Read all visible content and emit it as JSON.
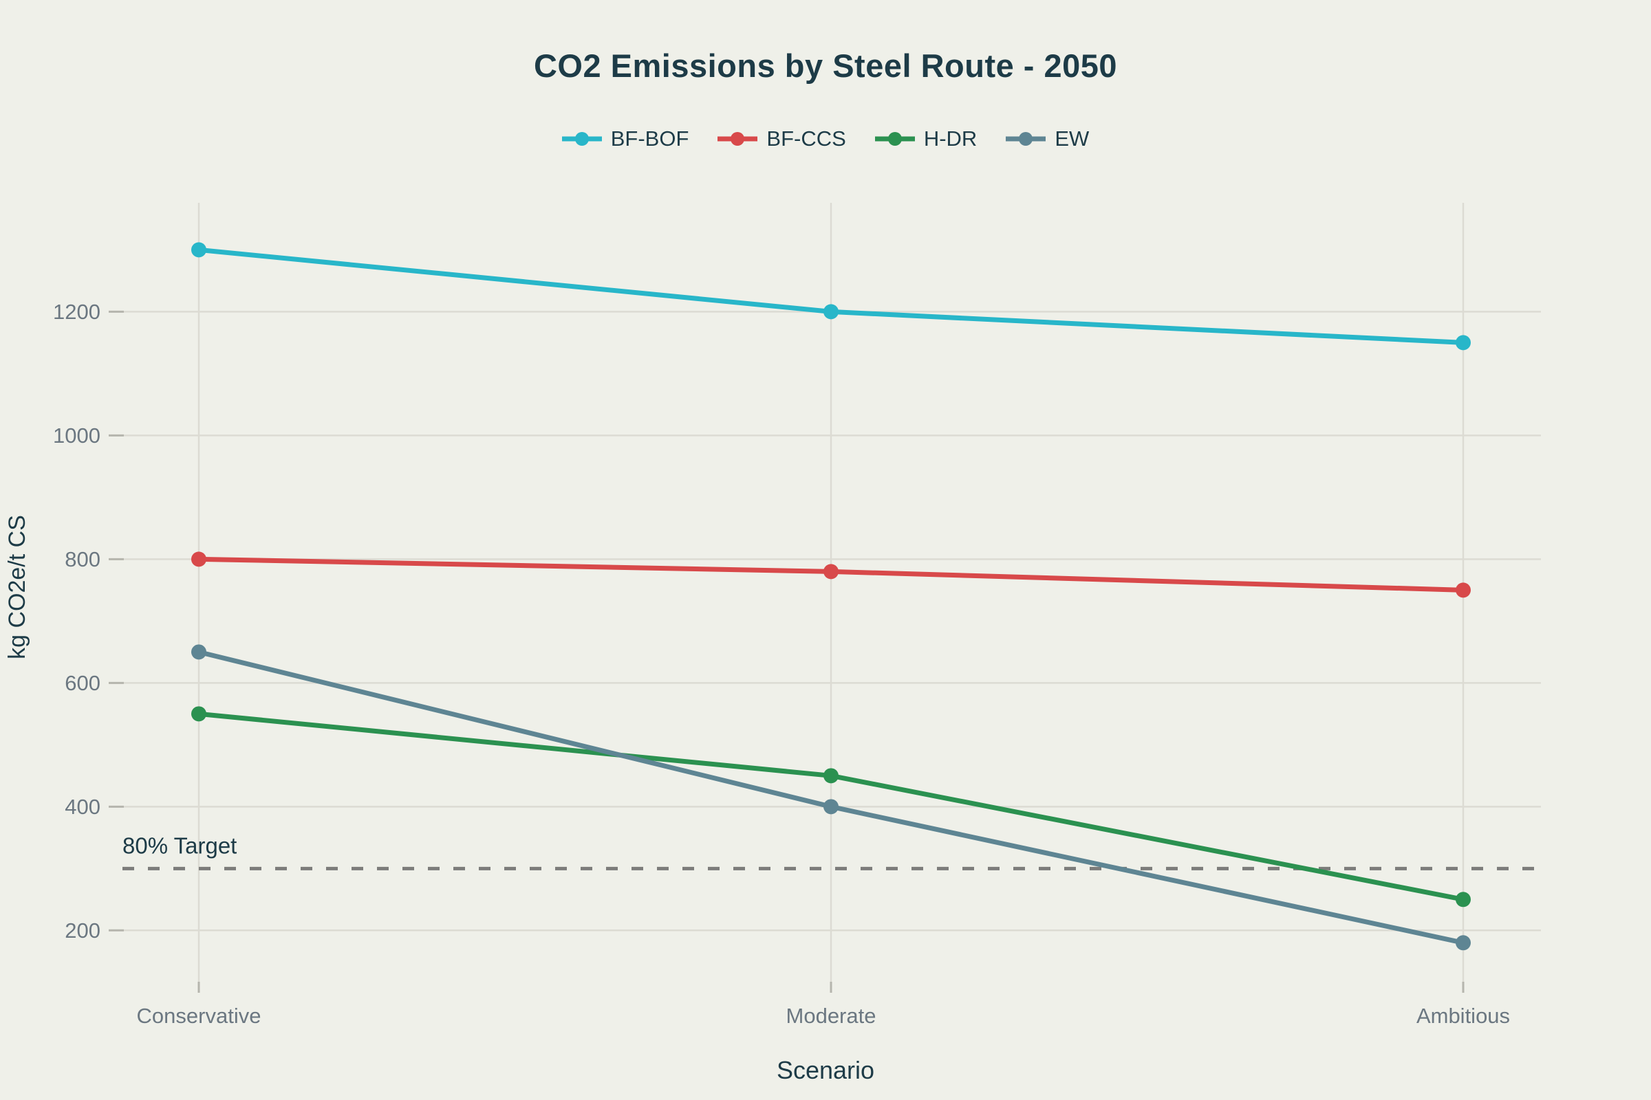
{
  "title": "CO2 Emissions by Steel Route - 2050",
  "axes": {
    "x_title": "Scenario",
    "y_title": "kg CO2e/t CS"
  },
  "colors": {
    "background": "#eff0e9",
    "gridline": "#dcdbd3",
    "tick": "#b5b5ad",
    "axis_text": "#6b7781",
    "heading_text": "#1d3b47",
    "target_line": "#7c7c7a"
  },
  "chart_data": {
    "type": "line",
    "title": "CO2 Emissions by Steel Route - 2050",
    "xlabel": "Scenario",
    "ylabel": "kg CO2e/t CS",
    "categories": [
      "Conservative",
      "Moderate",
      "Ambitious"
    ],
    "series": [
      {
        "name": "BF-BOF",
        "color": "#28b6c9",
        "values": [
          1300,
          1200,
          1150
        ]
      },
      {
        "name": "BF-CCS",
        "color": "#d8494a",
        "values": [
          800,
          780,
          750
        ]
      },
      {
        "name": "H-DR",
        "color": "#2b9150",
        "values": [
          550,
          450,
          250
        ]
      },
      {
        "name": "EW",
        "color": "#5e8593",
        "values": [
          650,
          400,
          180
        ]
      }
    ],
    "yticks": [
      200,
      400,
      600,
      800,
      1000,
      1200
    ],
    "ylim": [
      117,
      1376
    ],
    "grid": true,
    "legend_position": "top-center",
    "target_line": {
      "label": "80% Target",
      "value": 300,
      "style": "dashed",
      "color": "#7c7c7a"
    }
  }
}
